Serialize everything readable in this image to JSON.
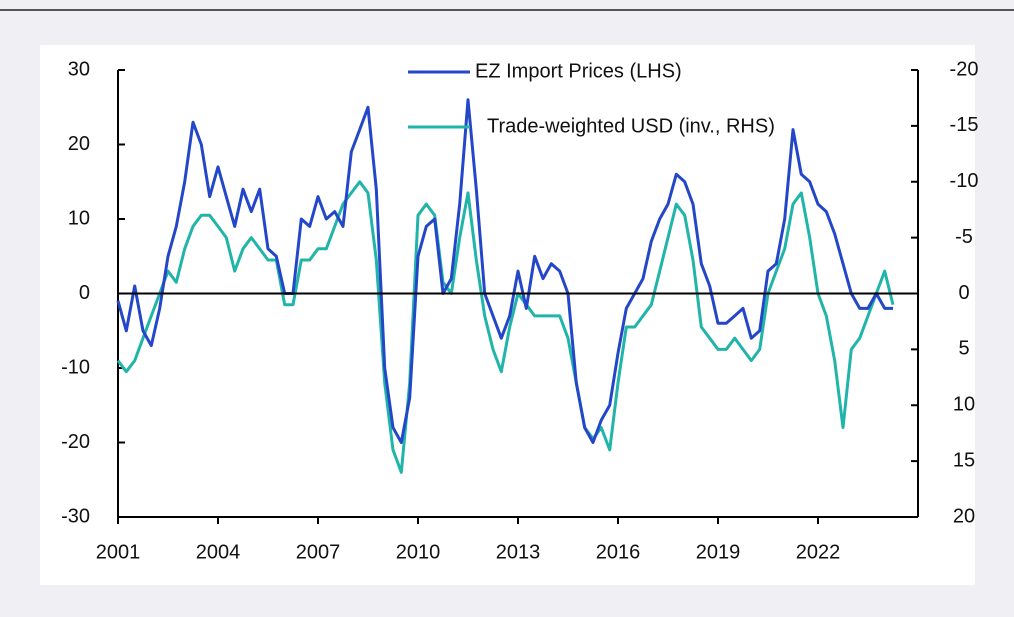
{
  "chart_data": {
    "type": "line",
    "x": [
      2001,
      2001.25,
      2001.5,
      2001.75,
      2002,
      2002.25,
      2002.5,
      2002.75,
      2003,
      2003.25,
      2003.5,
      2003.75,
      2004,
      2004.25,
      2004.5,
      2004.75,
      2005,
      2005.25,
      2005.5,
      2005.75,
      2006,
      2006.25,
      2006.5,
      2006.75,
      2007,
      2007.25,
      2007.5,
      2007.75,
      2008,
      2008.25,
      2008.5,
      2008.75,
      2009,
      2009.25,
      2009.5,
      2009.75,
      2010,
      2010.25,
      2010.5,
      2010.75,
      2011,
      2011.25,
      2011.5,
      2011.75,
      2012,
      2012.25,
      2012.5,
      2012.75,
      2013,
      2013.25,
      2013.5,
      2013.75,
      2014,
      2014.25,
      2014.5,
      2014.75,
      2015,
      2015.25,
      2015.5,
      2015.75,
      2016,
      2016.25,
      2016.5,
      2016.75,
      2017,
      2017.25,
      2017.5,
      2017.75,
      2018,
      2018.25,
      2018.5,
      2018.75,
      2019,
      2019.25,
      2019.5,
      2019.75,
      2020,
      2020.25,
      2020.5,
      2020.75,
      2021,
      2021.25,
      2021.5,
      2021.75,
      2022,
      2022.25,
      2022.5,
      2022.75,
      2023,
      2023.25,
      2023.5,
      2023.75,
      2024,
      2024.25
    ],
    "series": [
      {
        "name": "EZ Import Prices (LHS)",
        "color": "#2347c8",
        "axis": "y",
        "values": [
          -1,
          -5,
          1,
          -5,
          -7,
          -2,
          5,
          9,
          15,
          23,
          20,
          13,
          17,
          13,
          9,
          14,
          11,
          14,
          6,
          5,
          0,
          0,
          10,
          9,
          13,
          10,
          11,
          9,
          19,
          22,
          25,
          14,
          -10,
          -18,
          -20,
          -14,
          5,
          9,
          10,
          0,
          2,
          12,
          26,
          14,
          0,
          -3,
          -6,
          -3,
          3,
          -2,
          5,
          2,
          4,
          3,
          0,
          -12,
          -18,
          -20,
          -17,
          -15,
          -8,
          -2,
          0,
          2,
          7,
          10,
          12,
          16,
          15,
          12,
          4,
          1,
          -4,
          -4,
          -3,
          -2,
          -6,
          -5,
          3,
          4,
          10,
          22,
          16,
          15,
          12,
          11,
          8,
          4,
          0,
          -2,
          -2,
          0,
          -2,
          -2
        ]
      },
      {
        "name": "Trade-weighted USD (inv., RHS)",
        "color": "#20b5a8",
        "axis": "y2",
        "values": [
          6,
          7,
          6,
          4,
          2,
          0,
          -2,
          -1,
          -4,
          -6,
          -7,
          -7,
          -6,
          -5,
          -2,
          -4,
          -5,
          -4,
          -3,
          -3,
          1,
          1,
          -3,
          -3,
          -4,
          -4,
          -6,
          -8,
          -9,
          -10,
          -9,
          -3,
          8,
          14,
          16,
          8,
          -7,
          -8,
          -7,
          -1,
          0,
          -5,
          -9,
          -3,
          2,
          5,
          7,
          3,
          0,
          1,
          2,
          2,
          2,
          2,
          4,
          8,
          12,
          13,
          12,
          14,
          8,
          3,
          3,
          2,
          1,
          -2,
          -5,
          -8,
          -7,
          -3,
          3,
          4,
          5,
          5,
          4,
          5,
          6,
          5,
          0,
          -2,
          -4,
          -8,
          -9,
          -5,
          0,
          2,
          6,
          12,
          5,
          4,
          2,
          0,
          -2,
          1
        ]
      }
    ],
    "xlim": [
      2001,
      2025
    ],
    "xticks": [
      2001,
      2004,
      2007,
      2010,
      2013,
      2016,
      2019,
      2022
    ],
    "ylim": [
      -30,
      30
    ],
    "yticks": [
      -30,
      -20,
      -10,
      0,
      10,
      20,
      30
    ],
    "y2lim": [
      20,
      -20
    ],
    "y2ticks": [
      -20,
      -15,
      -10,
      -5,
      0,
      5,
      10,
      15,
      20
    ],
    "legend": "top-center"
  }
}
